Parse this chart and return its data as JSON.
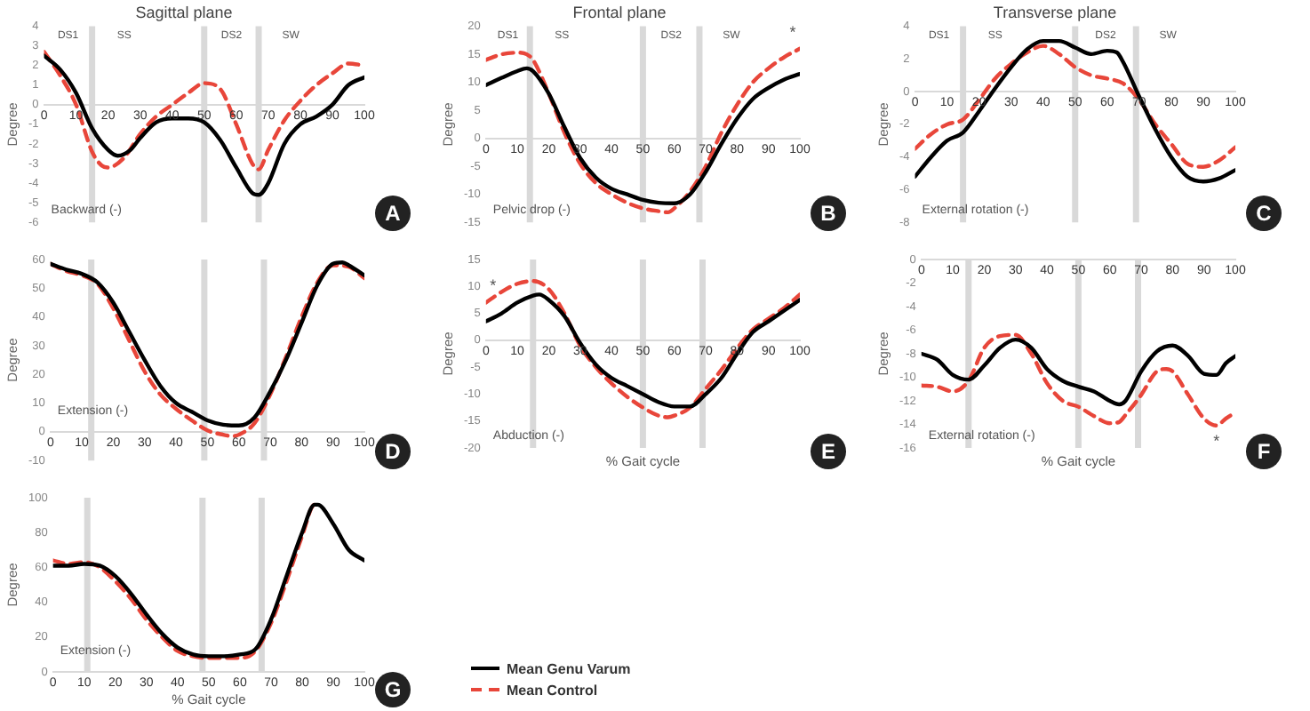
{
  "chart_data": [
    {
      "type": "line",
      "title": "Sagittal plane",
      "ylabel": "Degree",
      "xlim": [
        0,
        100
      ],
      "xticks": [
        0,
        10,
        20,
        30,
        40,
        50,
        60,
        70,
        80,
        90,
        100
      ],
      "ylim": [
        -6,
        4
      ],
      "yticks": [
        -6,
        -5,
        -4,
        -3,
        -2,
        -1,
        0,
        1,
        2,
        3,
        4
      ],
      "grid": false,
      "ref_lines": [
        {
          "axis": "x",
          "value": 15,
          "color": "#d9d9d9"
        },
        {
          "axis": "x",
          "value": 50,
          "color": "#d9d9d9"
        },
        {
          "axis": "x",
          "value": 67,
          "color": "#d9d9d9"
        }
      ],
      "annotations": [
        "Backward (-)",
        "A",
        "DS1",
        "SS",
        "DS2",
        "SW"
      ],
      "series": [
        {
          "color": "#000000",
          "line_style": "solid",
          "x": [
            0,
            5,
            10,
            15,
            20,
            23,
            27,
            30,
            35,
            40,
            45,
            50,
            55,
            60,
            65,
            67,
            70,
            75,
            80,
            85,
            90,
            95,
            100
          ],
          "values": [
            2.5,
            1.8,
            0.6,
            -1.2,
            -2.3,
            -2.6,
            -2.3,
            -1.7,
            -0.9,
            -0.7,
            -0.7,
            -0.9,
            -1.8,
            -3.2,
            -4.5,
            -4.6,
            -4,
            -2,
            -1,
            -0.6,
            0,
            1,
            1.4
          ]
        },
        {
          "color": "#e8463a",
          "line_style": "dashed",
          "x": [
            0,
            5,
            10,
            15,
            18,
            20,
            25,
            30,
            35,
            40,
            45,
            50,
            55,
            60,
            65,
            67,
            70,
            75,
            80,
            85,
            90,
            95,
            100
          ],
          "values": [
            2.7,
            1.5,
            0,
            -2.4,
            -3.1,
            -3.2,
            -2.7,
            -1.5,
            -0.6,
            0,
            0.6,
            1.1,
            0.8,
            -1,
            -3,
            -3.3,
            -2.3,
            -0.8,
            0.2,
            1,
            1.6,
            2.1,
            2
          ]
        }
      ]
    },
    {
      "type": "line",
      "title": "Frontal plane",
      "ylabel": "Degree",
      "xlim": [
        0,
        100
      ],
      "xticks": [
        0,
        10,
        20,
        30,
        40,
        50,
        60,
        70,
        80,
        90,
        100
      ],
      "ylim": [
        -15,
        20
      ],
      "yticks": [
        -15,
        -10,
        -5,
        0,
        5,
        10,
        15,
        20
      ],
      "grid": false,
      "ref_lines": [
        {
          "axis": "x",
          "value": 14,
          "color": "#d9d9d9"
        },
        {
          "axis": "x",
          "value": 50,
          "color": "#d9d9d9"
        },
        {
          "axis": "x",
          "value": 68,
          "color": "#d9d9d9"
        }
      ],
      "annotations": [
        "Pelvic drop (-)",
        "B",
        "DS1",
        "SS",
        "DS2",
        "SW",
        {
          "text": "*",
          "x": 100,
          "y": 16
        }
      ],
      "series": [
        {
          "color": "#000000",
          "line_style": "solid",
          "x": [
            0,
            5,
            10,
            13,
            15,
            20,
            25,
            30,
            35,
            40,
            45,
            50,
            55,
            60,
            65,
            70,
            75,
            80,
            85,
            90,
            95,
            100
          ],
          "values": [
            9.5,
            10.8,
            12,
            12.5,
            12,
            8,
            2,
            -3.5,
            -7,
            -9,
            -10,
            -11,
            -11.5,
            -11.6,
            -10,
            -6,
            -1,
            3.5,
            7,
            9,
            10.5,
            11.5
          ]
        },
        {
          "color": "#e8463a",
          "line_style": "dashed",
          "x": [
            0,
            5,
            10,
            13,
            15,
            20,
            25,
            30,
            35,
            40,
            45,
            50,
            55,
            58,
            60,
            65,
            70,
            75,
            80,
            85,
            90,
            95,
            100
          ],
          "values": [
            14,
            15,
            15.3,
            15,
            14,
            8,
            1,
            -4.5,
            -8,
            -10,
            -11.5,
            -12.5,
            -13,
            -13.2,
            -12.5,
            -9.5,
            -5,
            1,
            6,
            10,
            12.5,
            14.5,
            16
          ]
        }
      ]
    },
    {
      "type": "line",
      "title": "Transverse plane",
      "ylabel": "Degree",
      "xlim": [
        0,
        100
      ],
      "xticks": [
        0,
        10,
        20,
        30,
        40,
        50,
        60,
        70,
        80,
        90,
        100
      ],
      "ylim": [
        -8,
        4
      ],
      "yticks": [
        -8,
        -6,
        -4,
        -2,
        0,
        2,
        4
      ],
      "grid": false,
      "ref_lines": [
        {
          "axis": "x",
          "value": 15,
          "color": "#d9d9d9"
        },
        {
          "axis": "x",
          "value": 50,
          "color": "#d9d9d9"
        },
        {
          "axis": "x",
          "value": 69,
          "color": "#d9d9d9"
        }
      ],
      "annotations": [
        "External rotation (-)",
        "C",
        "DS1",
        "SS",
        "DS2",
        "SW"
      ],
      "series": [
        {
          "color": "#000000",
          "line_style": "solid",
          "x": [
            0,
            5,
            10,
            15,
            20,
            25,
            30,
            35,
            40,
            45,
            50,
            55,
            60,
            63,
            65,
            70,
            75,
            80,
            85,
            90,
            95,
            100
          ],
          "values": [
            -5.2,
            -4,
            -3,
            -2.5,
            -1.2,
            0.2,
            1.5,
            2.6,
            3.1,
            3.1,
            2.7,
            2.3,
            2.5,
            2.4,
            1.8,
            -0.3,
            -2.3,
            -4,
            -5.2,
            -5.5,
            -5.3,
            -4.8
          ]
        },
        {
          "color": "#e8463a",
          "line_style": "dashed",
          "x": [
            0,
            5,
            10,
            15,
            20,
            25,
            30,
            35,
            40,
            45,
            50,
            55,
            60,
            65,
            70,
            75,
            80,
            85,
            90,
            95,
            100
          ],
          "values": [
            -3.5,
            -2.6,
            -2,
            -1.7,
            -0.5,
            0.8,
            1.7,
            2.4,
            2.8,
            2.3,
            1.5,
            1,
            0.8,
            0.5,
            -0.5,
            -2,
            -3.2,
            -4.4,
            -4.6,
            -4.2,
            -3.4
          ]
        }
      ]
    },
    {
      "type": "line",
      "ylabel": "Degree",
      "xlim": [
        0,
        100
      ],
      "xticks": [
        0,
        10,
        20,
        30,
        40,
        50,
        60,
        70,
        80,
        90,
        100
      ],
      "ylim": [
        -10,
        60
      ],
      "yticks": [
        -10,
        0,
        10,
        20,
        30,
        40,
        50,
        60
      ],
      "grid": false,
      "ref_lines": [
        {
          "axis": "x",
          "value": 13,
          "color": "#d9d9d9"
        },
        {
          "axis": "x",
          "value": 49,
          "color": "#d9d9d9"
        },
        {
          "axis": "x",
          "value": 68,
          "color": "#d9d9d9"
        }
      ],
      "annotations": [
        "Extension (-)",
        "D"
      ],
      "series": [
        {
          "color": "#000000",
          "line_style": "solid",
          "x": [
            0,
            5,
            10,
            15,
            20,
            25,
            30,
            35,
            40,
            45,
            50,
            55,
            60,
            65,
            70,
            75,
            80,
            85,
            90,
            93,
            95,
            100
          ],
          "values": [
            58.5,
            56.5,
            55,
            52,
            45,
            35,
            25,
            16,
            10,
            7,
            4,
            2.5,
            2.2,
            5,
            14,
            25,
            38,
            51,
            58.5,
            59,
            58,
            54.5
          ]
        },
        {
          "color": "#e8463a",
          "line_style": "dashed",
          "x": [
            0,
            5,
            10,
            15,
            20,
            25,
            30,
            35,
            40,
            45,
            50,
            55,
            58,
            60,
            65,
            70,
            75,
            80,
            85,
            90,
            95,
            100
          ],
          "values": [
            58.5,
            56,
            54.5,
            51.5,
            43,
            32,
            21,
            13,
            8,
            4,
            0.5,
            -1,
            -1.5,
            -1,
            3,
            13,
            26,
            40,
            52,
            58,
            57.5,
            53.5
          ]
        }
      ]
    },
    {
      "type": "line",
      "ylabel": "Degree",
      "xlabel": "% Gait cycle",
      "xlim": [
        0,
        100
      ],
      "xticks": [
        0,
        10,
        20,
        30,
        40,
        50,
        60,
        70,
        80,
        90,
        100
      ],
      "ylim": [
        -20,
        15
      ],
      "yticks": [
        -20,
        -15,
        -10,
        -5,
        0,
        5,
        10,
        15
      ],
      "grid": false,
      "ref_lines": [
        {
          "axis": "x",
          "value": 15,
          "color": "#d9d9d9"
        },
        {
          "axis": "x",
          "value": 50,
          "color": "#d9d9d9"
        },
        {
          "axis": "x",
          "value": 69,
          "color": "#d9d9d9"
        }
      ],
      "annotations": [
        "Abduction (-)",
        "E",
        {
          "text": "*",
          "x": 0,
          "y": 7
        }
      ],
      "series": [
        {
          "color": "#000000",
          "line_style": "solid",
          "x": [
            0,
            5,
            10,
            15,
            17,
            20,
            25,
            30,
            35,
            40,
            45,
            50,
            55,
            60,
            65,
            70,
            75,
            80,
            85,
            90,
            95,
            100
          ],
          "values": [
            3.5,
            5,
            7,
            8.3,
            8.5,
            7.5,
            4.5,
            -0.5,
            -4.5,
            -7,
            -8.5,
            -10,
            -11.5,
            -12.3,
            -12.3,
            -10,
            -7,
            -2.5,
            1.5,
            3.5,
            5.5,
            7.5
          ]
        },
        {
          "color": "#e8463a",
          "line_style": "dashed",
          "x": [
            0,
            5,
            10,
            15,
            20,
            25,
            30,
            35,
            40,
            45,
            50,
            55,
            58,
            60,
            65,
            70,
            75,
            80,
            85,
            90,
            95,
            100
          ],
          "values": [
            7,
            9,
            10.5,
            11,
            9.5,
            5,
            -1,
            -5,
            -8,
            -10.5,
            -12.5,
            -14,
            -14.3,
            -14,
            -12.5,
            -9,
            -5.5,
            -1.5,
            2,
            4,
            6,
            8.5
          ]
        }
      ]
    },
    {
      "type": "line",
      "ylabel": "Degree",
      "xlabel": "% Gait cycle",
      "xlim": [
        0,
        100
      ],
      "xticks": [
        0,
        10,
        20,
        30,
        40,
        50,
        60,
        70,
        80,
        90,
        100
      ],
      "ylim": [
        -16,
        0
      ],
      "yticks": [
        -16,
        -14,
        -12,
        -10,
        -8,
        -6,
        -4,
        -2,
        0
      ],
      "grid": false,
      "ref_lines": [
        {
          "axis": "x",
          "value": 15,
          "color": "#d9d9d9"
        },
        {
          "axis": "x",
          "value": 50,
          "color": "#d9d9d9"
        },
        {
          "axis": "x",
          "value": 69,
          "color": "#d9d9d9"
        }
      ],
      "annotations": [
        "External rotation (-)",
        "F",
        {
          "text": "*",
          "x": 94,
          "y": -14.1
        }
      ],
      "series": [
        {
          "color": "#000000",
          "line_style": "solid",
          "x": [
            0,
            5,
            10,
            15,
            20,
            25,
            30,
            35,
            40,
            45,
            50,
            55,
            60,
            63,
            65,
            70,
            75,
            80,
            85,
            90,
            94,
            97,
            100
          ],
          "values": [
            -8,
            -8.5,
            -9.8,
            -10.2,
            -9,
            -7.5,
            -6.8,
            -7.5,
            -9.3,
            -10.3,
            -10.8,
            -11.2,
            -12,
            -12.3,
            -12,
            -9.5,
            -7.8,
            -7.3,
            -8.2,
            -9.7,
            -9.8,
            -8.8,
            -8.2
          ]
        },
        {
          "color": "#e8463a",
          "line_style": "dashed",
          "x": [
            0,
            5,
            10,
            15,
            20,
            25,
            30,
            35,
            40,
            45,
            50,
            55,
            60,
            63,
            65,
            70,
            75,
            78,
            80,
            85,
            90,
            94,
            97,
            100
          ],
          "values": [
            -10.7,
            -10.8,
            -11.2,
            -10.3,
            -7.5,
            -6.5,
            -6.4,
            -8,
            -10.5,
            -12,
            -12.5,
            -13.3,
            -13.9,
            -13.8,
            -13.2,
            -11.5,
            -9.5,
            -9.3,
            -9.5,
            -11.5,
            -13.5,
            -14.1,
            -13.5,
            -13
          ]
        }
      ]
    },
    {
      "type": "line",
      "ylabel": "Degree",
      "xlabel": "% Gait cycle",
      "xlim": [
        0,
        100
      ],
      "xticks": [
        0,
        10,
        20,
        30,
        40,
        50,
        60,
        70,
        80,
        90,
        100
      ],
      "ylim": [
        0,
        100
      ],
      "yticks": [
        0,
        20,
        40,
        60,
        80,
        100
      ],
      "grid": false,
      "legend": "bottom right",
      "ref_lines": [
        {
          "axis": "x",
          "value": 11,
          "color": "#d9d9d9"
        },
        {
          "axis": "x",
          "value": 48,
          "color": "#d9d9d9"
        },
        {
          "axis": "x",
          "value": 67,
          "color": "#d9d9d9"
        }
      ],
      "annotations": [
        "Extension (-)",
        "G"
      ],
      "series": [
        {
          "name": "Mean Genu Varum",
          "color": "#000000",
          "line_style": "solid",
          "x": [
            0,
            5,
            10,
            15,
            20,
            25,
            30,
            35,
            40,
            45,
            50,
            55,
            60,
            65,
            70,
            75,
            80,
            84,
            85,
            90,
            95,
            100
          ],
          "values": [
            61,
            61,
            62,
            61,
            55,
            45,
            33,
            22,
            14,
            10,
            9,
            9,
            10,
            13,
            30,
            55,
            80,
            96,
            96,
            85,
            70,
            64
          ]
        },
        {
          "name": "Mean Control",
          "color": "#e8463a",
          "line_style": "dashed",
          "x": [
            0,
            5,
            10,
            15,
            20,
            25,
            30,
            35,
            40,
            45,
            50,
            55,
            60,
            65,
            70,
            75,
            80,
            84,
            85
          ],
          "values": [
            64,
            62,
            63,
            60,
            52,
            42,
            30,
            20,
            12,
            9,
            8,
            8,
            8,
            12,
            28,
            52,
            78,
            96,
            96
          ]
        }
      ]
    }
  ]
}
